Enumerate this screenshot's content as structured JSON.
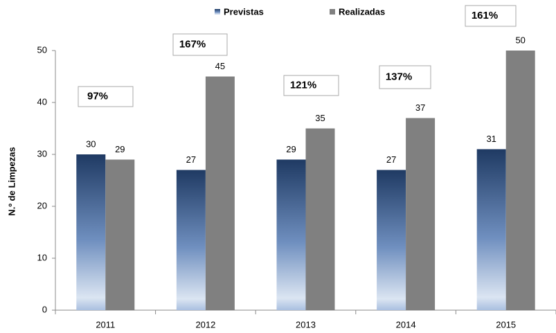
{
  "chart_data": {
    "type": "bar",
    "y_label": "N.º de Limpezas",
    "categories": [
      "2011",
      "2012",
      "2013",
      "2014",
      "2015"
    ],
    "series": [
      {
        "name": "Previstas",
        "color": "#1f3a63",
        "values": [
          30,
          27,
          29,
          27,
          31
        ]
      },
      {
        "name": "Realizadas",
        "color": "#808080",
        "values": [
          29,
          45,
          35,
          37,
          50
        ]
      }
    ],
    "annotations": [
      "97%",
      "167%",
      "121%",
      "137%",
      "161%"
    ],
    "ylim": [
      0,
      50
    ],
    "yticks": [
      0,
      10,
      20,
      30,
      40,
      50
    ],
    "grid": false
  }
}
